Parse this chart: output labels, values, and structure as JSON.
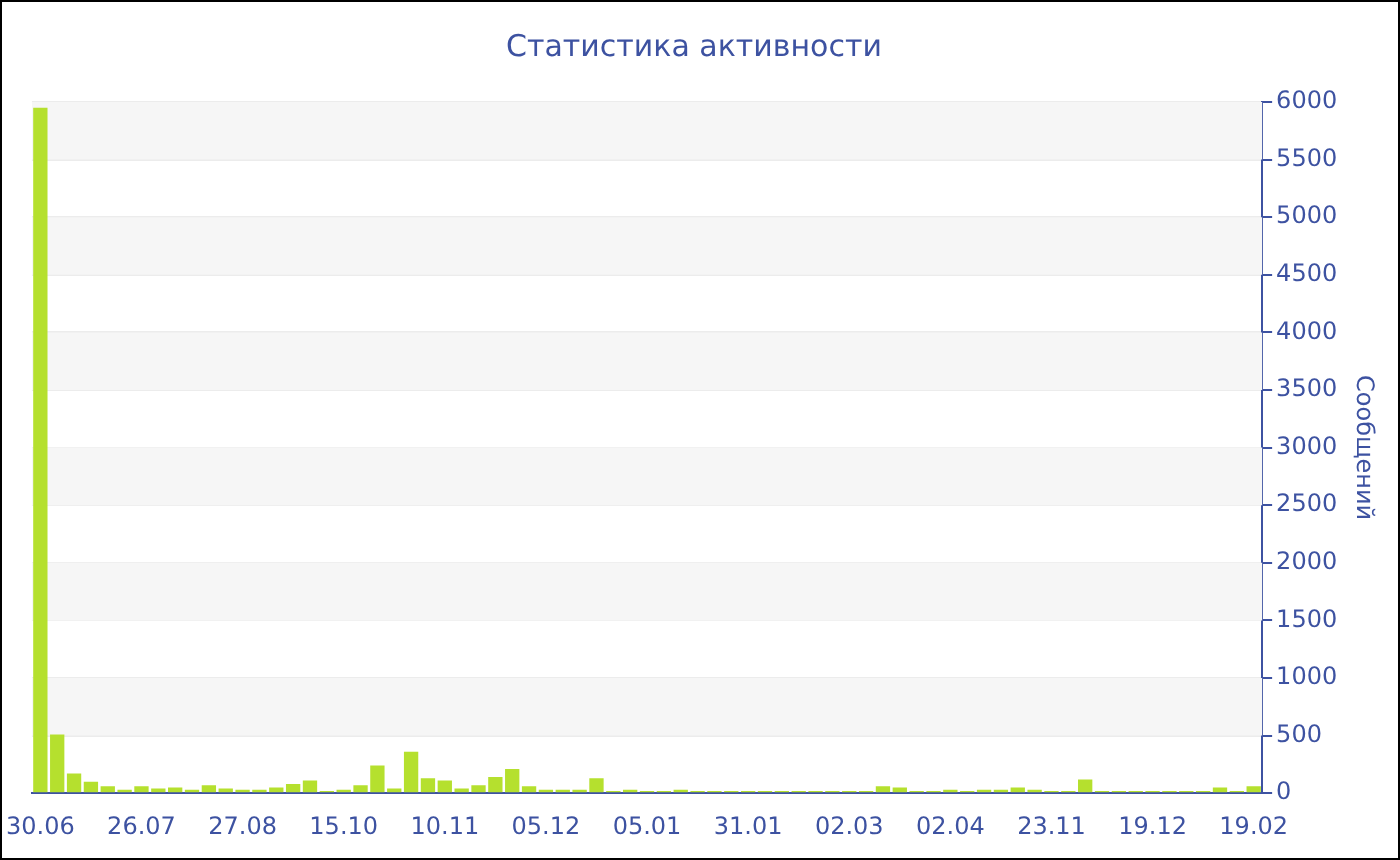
{
  "chart_data": {
    "type": "bar",
    "title": "Статистика активности",
    "ylabel": "Сообщений",
    "categories": [
      "30.06",
      null,
      null,
      null,
      null,
      null,
      "26.07",
      null,
      null,
      null,
      null,
      null,
      "27.08",
      null,
      null,
      null,
      null,
      null,
      "15.10",
      null,
      null,
      null,
      null,
      null,
      "10.11",
      null,
      null,
      null,
      null,
      null,
      "05.12",
      null,
      null,
      null,
      null,
      null,
      "05.01",
      null,
      null,
      null,
      null,
      null,
      "31.01",
      null,
      null,
      null,
      null,
      null,
      "02.03",
      null,
      null,
      null,
      null,
      null,
      "02.04",
      null,
      null,
      null,
      null,
      null,
      "23.11",
      null,
      null,
      null,
      null,
      null,
      "19.12",
      null,
      null,
      null,
      null,
      null,
      "19.02"
    ],
    "values": [
      5950,
      510,
      170,
      100,
      60,
      30,
      60,
      40,
      50,
      30,
      70,
      40,
      30,
      30,
      50,
      80,
      110,
      20,
      30,
      70,
      240,
      40,
      360,
      130,
      110,
      40,
      70,
      140,
      210,
      60,
      30,
      30,
      30,
      130,
      20,
      30,
      20,
      20,
      30,
      20,
      20,
      20,
      20,
      20,
      20,
      20,
      20,
      20,
      20,
      20,
      60,
      50,
      20,
      20,
      30,
      20,
      30,
      30,
      50,
      30,
      20,
      20,
      120,
      20,
      20,
      20,
      20,
      20,
      20,
      20,
      50,
      20,
      60
    ],
    "color": "#b5e02e",
    "ylim": [
      0,
      6000
    ],
    "yticks": [
      0,
      500,
      1000,
      1500,
      2000,
      2500,
      3000,
      3500,
      4000,
      4500,
      5000,
      5500,
      6000
    ],
    "grid": "y"
  }
}
